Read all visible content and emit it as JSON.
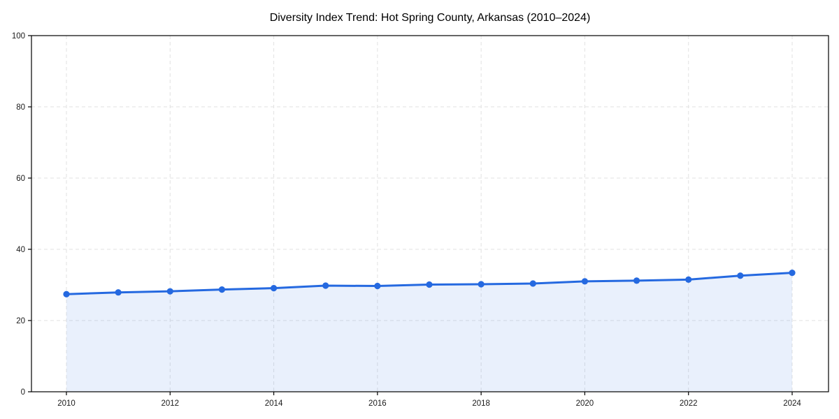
{
  "chart_data": {
    "type": "area",
    "title": "Diversity Index Trend: Hot Spring County, Arkansas (2010–2024)",
    "x": [
      2010,
      2011,
      2012,
      2013,
      2014,
      2015,
      2016,
      2017,
      2018,
      2019,
      2020,
      2021,
      2022,
      2023,
      2024
    ],
    "series": [
      {
        "name": "Diversity Index",
        "values": [
          27.4,
          27.9,
          28.2,
          28.7,
          29.1,
          29.8,
          29.7,
          30.1,
          30.2,
          30.4,
          31.0,
          31.2,
          31.5,
          32.6,
          33.4
        ]
      }
    ],
    "xlabel": "",
    "ylabel": "",
    "ylim": [
      0,
      100
    ],
    "yticks": [
      0,
      20,
      40,
      60,
      80,
      100
    ],
    "xticks": [
      2010,
      2012,
      2014,
      2016,
      2018,
      2020,
      2022,
      2024
    ],
    "grid": true,
    "grid_style": "dashed",
    "legend": "none",
    "marker": "circle",
    "colors": {
      "line": "#2569e0",
      "marker": "#2569e0",
      "fill": "rgba(37,105,224,0.10)",
      "grid": "#e2e2e2",
      "axis": "#000000",
      "tick_text": "#1a1a1a"
    }
  }
}
